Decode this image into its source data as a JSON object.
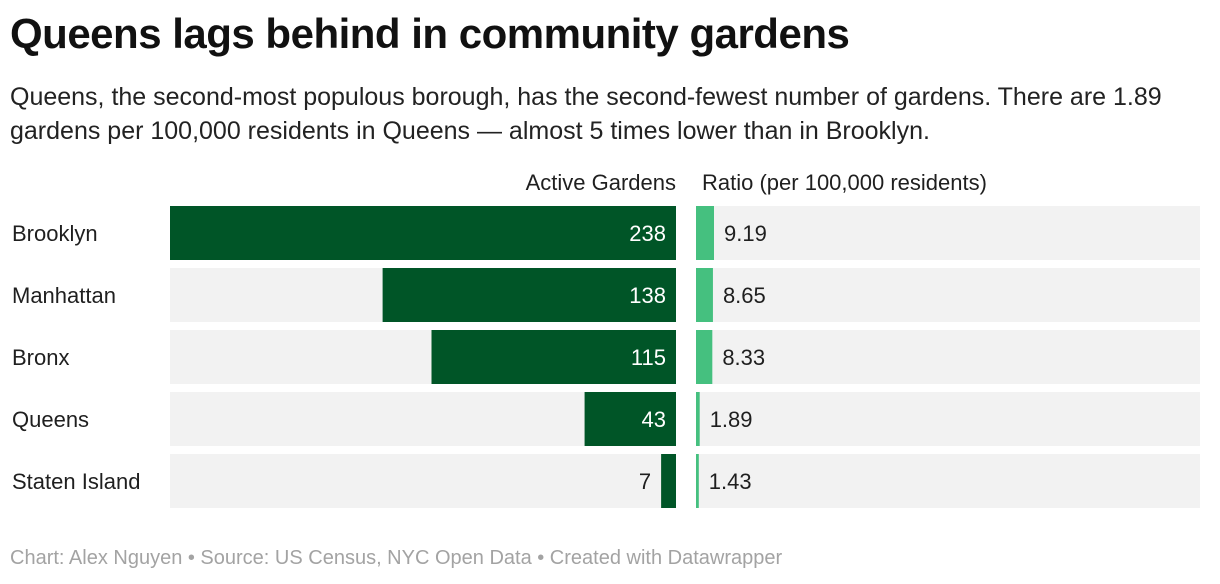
{
  "title": "Queens lags behind in community gardens",
  "subtitle": "Queens, the second-most populous borough, has the second-fewest number of gardens. There are 1.89 gardens per 100,000 residents in Queens — almost 5 times lower than in Brooklyn.",
  "footer": "Chart: Alex Nguyen • Source: US Census, NYC Open Data • Created with Datawrapper",
  "colors": {
    "gardens_bar": "#005527",
    "ratio_bar": "#45c07f",
    "track": "#f2f2f2"
  },
  "chart_data": {
    "type": "bar",
    "orientation": "horizontal",
    "categories": [
      "Brooklyn",
      "Manhattan",
      "Bronx",
      "Queens",
      "Staten Island"
    ],
    "series": [
      {
        "name": "Active Gardens",
        "values": [
          238,
          138,
          115,
          43,
          7
        ],
        "labels": [
          "238",
          "138",
          "115",
          "43",
          "7"
        ],
        "xlim": [
          0,
          238
        ],
        "direction": "right-to-left"
      },
      {
        "name": "Ratio (per 100,000 residents)",
        "values": [
          9.19,
          8.65,
          8.33,
          1.89,
          1.43
        ],
        "labels": [
          "9.19",
          "8.65",
          "8.33",
          "1.89",
          "1.43"
        ],
        "xlim": [
          0,
          9.19
        ],
        "direction": "left-to-right"
      }
    ]
  }
}
